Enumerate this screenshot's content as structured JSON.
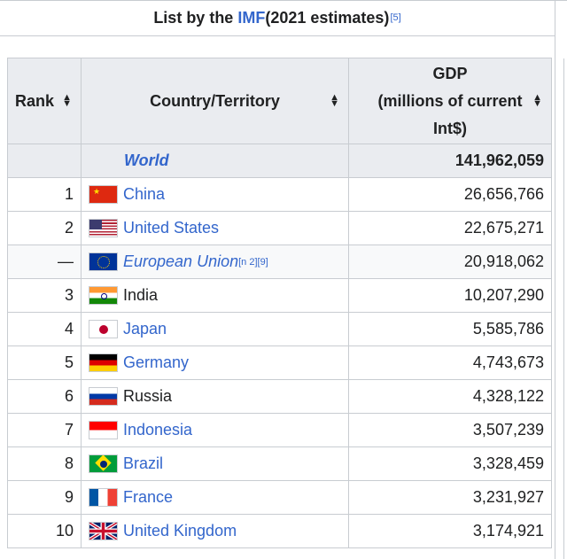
{
  "caption": {
    "prefix": "List by the ",
    "link": "IMF",
    "suffix": " (2021 estimates)",
    "ref": "[5]"
  },
  "headers": {
    "rank": "Rank",
    "country": "Country/Territory",
    "gdp_line1": "GDP",
    "gdp_line2": "(millions of current",
    "gdp_line3": "Int$)",
    "sort_icon": "sort-icon"
  },
  "world": {
    "rank": "",
    "country": "World",
    "gdp": "141,962,059"
  },
  "rows": [
    {
      "rank": "1",
      "country": "China",
      "gdp": "26,656,766",
      "flag": "flag-china-icon"
    },
    {
      "rank": "2",
      "country": "United States",
      "gdp": "22,675,271",
      "flag": "flag-united-states-icon"
    },
    {
      "rank": "—",
      "country": "European Union",
      "note": "[n 2][9]",
      "gdp": "20,918,062",
      "flag": "flag-european-union-icon"
    },
    {
      "rank": "3",
      "country": "India",
      "gdp": "10,207,290",
      "flag": "flag-india-icon"
    },
    {
      "rank": "4",
      "country": "Japan",
      "gdp": "5,585,786",
      "flag": "flag-japan-icon"
    },
    {
      "rank": "5",
      "country": "Germany",
      "gdp": "4,743,673",
      "flag": "flag-germany-icon"
    },
    {
      "rank": "6",
      "country": "Russia",
      "gdp": "4,328,122",
      "flag": "flag-russia-icon"
    },
    {
      "rank": "7",
      "country": "Indonesia",
      "gdp": "3,507,239",
      "flag": "flag-indonesia-icon"
    },
    {
      "rank": "8",
      "country": "Brazil",
      "gdp": "3,328,459",
      "flag": "flag-brazil-icon"
    },
    {
      "rank": "9",
      "country": "France",
      "gdp": "3,231,927",
      "flag": "flag-france-icon"
    },
    {
      "rank": "10",
      "country": "United Kingdom",
      "gdp": "3,174,921",
      "flag": "flag-united-kingdom-icon"
    }
  ],
  "colors": {
    "link": "#3366cc",
    "header_bg": "#eaecf0",
    "border": "#c8ccd1"
  }
}
